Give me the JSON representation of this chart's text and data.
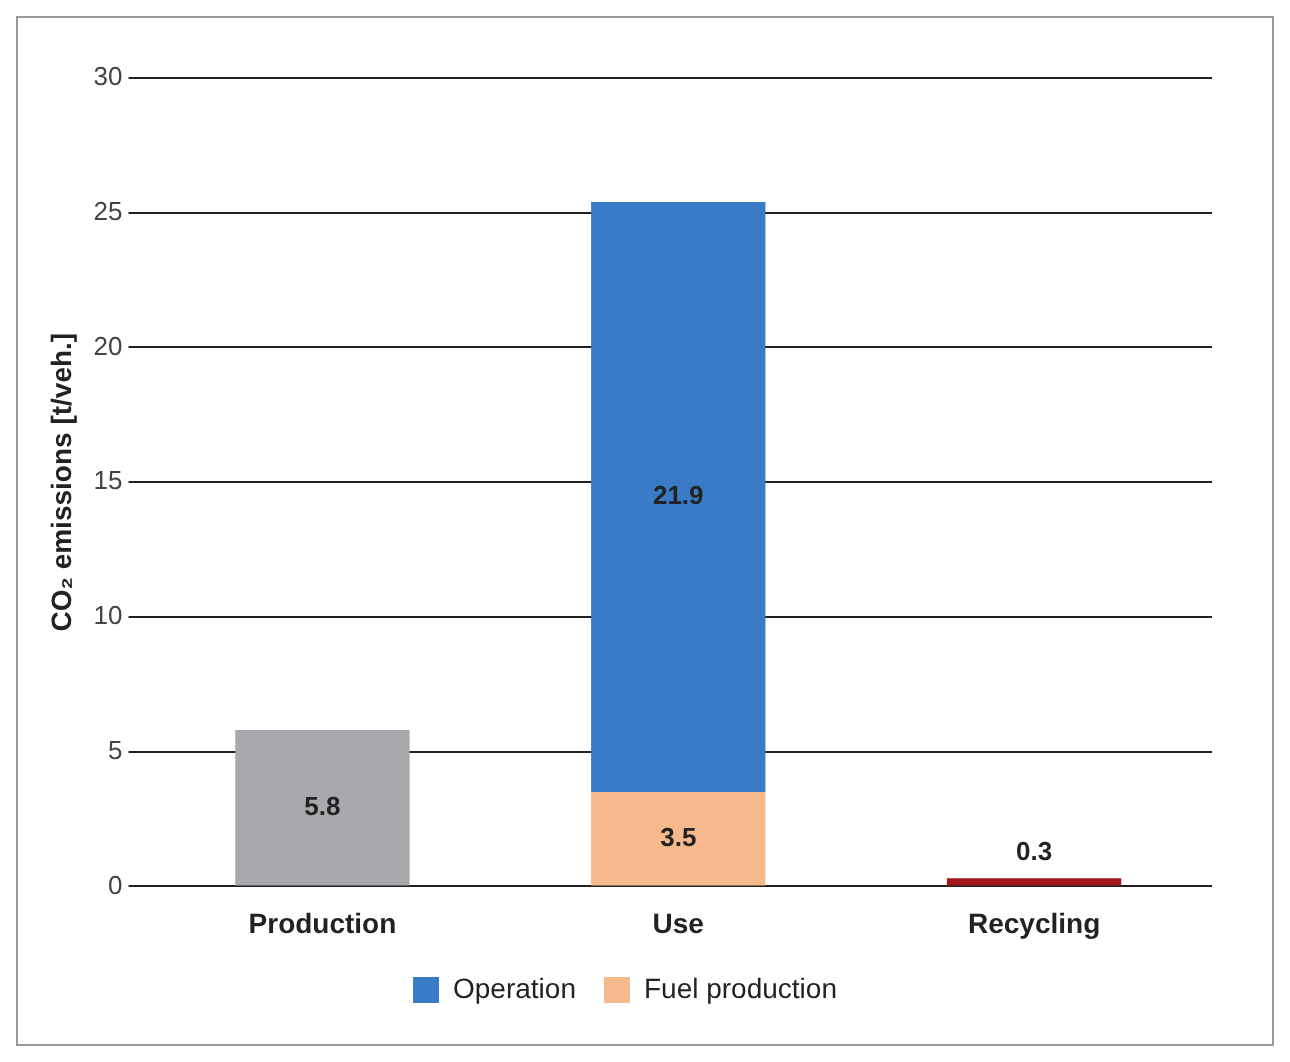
{
  "chart_data": {
    "type": "bar",
    "stacked": true,
    "ylabel": "CO₂ emissions [t/veh.]",
    "categories": [
      "Production",
      "Use",
      "Recycling"
    ],
    "series": [
      {
        "color": "#a7a9ac",
        "values": [
          5.8,
          null,
          null
        ]
      },
      {
        "name": "Fuel production",
        "color": "#f6b98c",
        "values": [
          null,
          3.5,
          null
        ]
      },
      {
        "name": "Operation",
        "color": "#3a7bc8",
        "values": [
          null,
          21.9,
          null
        ]
      },
      {
        "color": "#a3161b",
        "values": [
          null,
          null,
          0.3
        ]
      }
    ],
    "ylim": [
      0,
      30
    ],
    "yticks": [
      0,
      5,
      10,
      15,
      20,
      25,
      30
    ],
    "grid": "y",
    "legend": "bottom",
    "data_labels": true
  }
}
